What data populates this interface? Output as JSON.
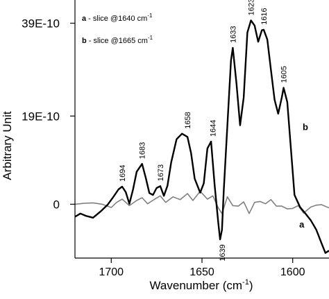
{
  "chart_data": {
    "type": "line",
    "xlabel": "Wavenumber (cm",
    "xlabel_sup": "-1",
    "xlabel_close": ")",
    "ylabel": "Arbitrary Unit",
    "xlim": [
      1720,
      1580
    ],
    "x_reversed": true,
    "ylim": [
      -1.16e-09,
      4.4e-09
    ],
    "x_ticks": [
      {
        "value": 1700,
        "label": "1700"
      },
      {
        "value": 1650,
        "label": "1650"
      },
      {
        "value": 1600,
        "label": "1600"
      }
    ],
    "y_ticks": [
      {
        "value": 0,
        "label": "0"
      },
      {
        "value": 1.9e-09,
        "label": "19E-10"
      },
      {
        "value": 3.9e-09,
        "label": "39E-10"
      }
    ],
    "legend": {
      "position": "top-left",
      "entries": [
        {
          "key": "a",
          "text": " - slice @1640 cm",
          "sup": "-1"
        },
        {
          "key": "b",
          "text": " - slice @1665 cm",
          "sup": "-1"
        }
      ]
    },
    "series": [
      {
        "id": "a",
        "color": "#808080",
        "x": [
          1720,
          1715,
          1710,
          1705,
          1700,
          1697,
          1694,
          1690,
          1686,
          1683,
          1680,
          1676,
          1673,
          1670,
          1666,
          1662,
          1658,
          1655,
          1651,
          1647,
          1644,
          1641,
          1639,
          1636,
          1633,
          1630,
          1627,
          1624,
          1621,
          1618,
          1615,
          1612,
          1609,
          1606,
          1603,
          1600,
          1597,
          1594,
          1590,
          1587,
          1584,
          1580
        ],
        "y": [
          0.0,
          2e-11,
          3e-11,
          0.0,
          -7e-11,
          4e-11,
          1.1e-10,
          -3e-11,
          8e-11,
          1.4e-10,
          1e-11,
          1.1e-10,
          1.8e-10,
          4e-11,
          1.6e-10,
          1e-10,
          2.3e-10,
          8e-11,
          2.8e-10,
          1.1e-10,
          1.8e-10,
          -8e-11,
          -2e-10,
          1.6e-10,
          -3e-11,
          -4e-11,
          5e-11,
          -2e-10,
          4e-11,
          6e-11,
          1e-11,
          1e-10,
          -4e-11,
          -4e-11,
          -1e-10,
          -9e-11,
          -3e-11,
          -1.9e-10,
          -6e-11,
          -2e-11,
          -1e-11,
          -8e-11
        ]
      },
      {
        "id": "b",
        "color": "#000000",
        "x": [
          1720,
          1717,
          1714,
          1710,
          1706,
          1702,
          1699,
          1696,
          1694,
          1692,
          1690,
          1688,
          1686,
          1683,
          1681,
          1679,
          1677,
          1675,
          1673,
          1671,
          1669,
          1667,
          1664,
          1661,
          1658,
          1656,
          1654,
          1651,
          1649,
          1647,
          1645,
          1643,
          1641,
          1640,
          1639,
          1638,
          1636,
          1634,
          1633,
          1631,
          1629,
          1627,
          1625,
          1623,
          1621,
          1619,
          1617,
          1616,
          1614,
          1612,
          1610,
          1608,
          1606,
          1605,
          1603,
          1601,
          1599,
          1596,
          1593,
          1590,
          1587,
          1584,
          1582,
          1580
        ],
        "y": [
          -2.7e-10,
          -2e-10,
          -2.5e-10,
          -2.9e-10,
          -1.6e-10,
          -1e-11,
          1.5e-10,
          3.2e-10,
          3.8e-10,
          2.6e-10,
          1e-11,
          3.2e-10,
          7e-10,
          8.7e-10,
          5.7e-10,
          2.4e-10,
          2e-10,
          3.5e-10,
          3.9e-10,
          1.8e-10,
          4e-10,
          9e-10,
          1.4e-09,
          1.52e-09,
          1.45e-09,
          1.1e-09,
          5.5e-10,
          2.5e-10,
          4.5e-10,
          1.2e-09,
          1.35e-09,
          4e-10,
          -4e-10,
          -7.6e-10,
          -5.5e-10,
          3e-10,
          1.7e-09,
          3.1e-09,
          3.37e-09,
          2.6e-09,
          1.7e-09,
          2.3e-09,
          3.7e-09,
          3.96e-09,
          3.85e-09,
          3.5e-09,
          3.75e-09,
          3.76e-09,
          3.55e-09,
          2.9e-09,
          2.25e-09,
          1.95e-09,
          2.3e-09,
          2.51e-09,
          2.2e-09,
          1.2e-09,
          2e-10,
          -6e-11,
          -2e-10,
          -3.5e-10,
          -5.5e-10,
          -8.5e-10,
          -1.05e-09,
          -1e-09
        ]
      }
    ],
    "peak_labels": [
      {
        "x": 1694,
        "y": 3.8e-10,
        "label": "1694",
        "side": "above"
      },
      {
        "x": 1683,
        "y": 8.7e-10,
        "label": "1683",
        "side": "above"
      },
      {
        "x": 1673,
        "y": 3.9e-10,
        "label": "1673",
        "side": "above"
      },
      {
        "x": 1658,
        "y": 1.52e-09,
        "label": "1658",
        "side": "above"
      },
      {
        "x": 1644,
        "y": 1.35e-09,
        "label": "1644",
        "side": "above"
      },
      {
        "x": 1639,
        "y": -7.6e-10,
        "label": "1639",
        "side": "below"
      },
      {
        "x": 1633,
        "y": 3.37e-09,
        "label": "1633",
        "side": "above"
      },
      {
        "x": 1623,
        "y": 3.96e-09,
        "label": "1623",
        "side": "above"
      },
      {
        "x": 1616,
        "y": 3.76e-09,
        "label": "1616",
        "side": "above"
      },
      {
        "x": 1605,
        "y": 2.51e-09,
        "label": "1605",
        "side": "above"
      }
    ],
    "series_tags": [
      {
        "series": "b",
        "label": "b",
        "x": 1593,
        "y": 1.6e-09
      },
      {
        "series": "a",
        "label": "a",
        "x": 1595,
        "y": -5e-10
      }
    ]
  }
}
